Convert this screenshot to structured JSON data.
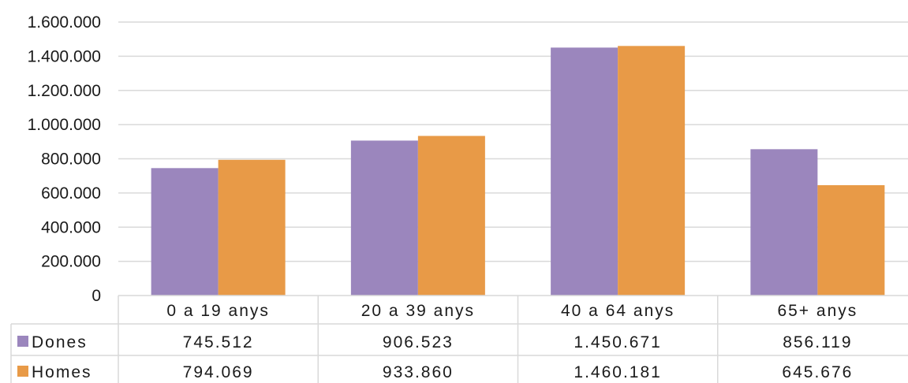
{
  "chart_data": {
    "type": "bar",
    "title": "",
    "xlabel": "",
    "ylabel": "",
    "categories": [
      "0 a 19 anys",
      "20 a 39 anys",
      "40 a 64 anys",
      "65+ anys"
    ],
    "series": [
      {
        "name": "Dones",
        "color": "#9b86bd",
        "values": [
          745512,
          906523,
          1450671,
          856119
        ],
        "labels": [
          "745.512",
          "906.523",
          "1.450.671",
          "856.119"
        ]
      },
      {
        "name": "Homes",
        "color": "#e89a47",
        "values": [
          794069,
          933860,
          1460181,
          645676
        ],
        "labels": [
          "794.069",
          "933.860",
          "1.460.181",
          "645.676"
        ]
      }
    ],
    "ylim": [
      0,
      1600000
    ],
    "yticks": [
      0,
      200000,
      400000,
      600000,
      800000,
      1000000,
      1200000,
      1400000,
      1600000
    ],
    "ytick_labels": [
      "0",
      "200.000",
      "400.000",
      "600.000",
      "800.000",
      "1.000.000",
      "1.200.000",
      "1.400.000",
      "1.600.000"
    ],
    "grid": true,
    "data_table": true,
    "legend": "in-data-table"
  }
}
